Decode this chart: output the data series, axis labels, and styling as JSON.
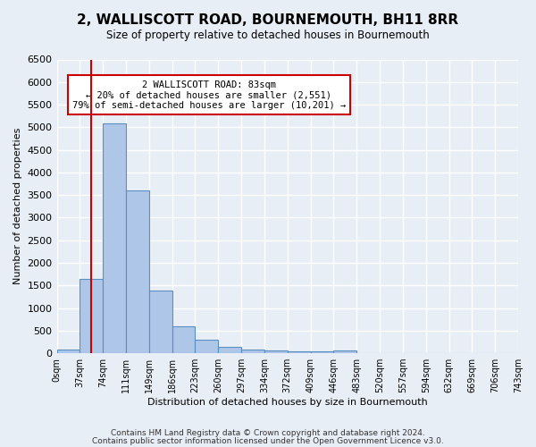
{
  "title": "2, WALLISCOTT ROAD, BOURNEMOUTH, BH11 8RR",
  "subtitle": "Size of property relative to detached houses in Bournemouth",
  "xlabel": "Distribution of detached houses by size in Bournemouth",
  "ylabel": "Number of detached properties",
  "bin_labels": [
    "0sqm",
    "37sqm",
    "74sqm",
    "111sqm",
    "149sqm",
    "186sqm",
    "223sqm",
    "260sqm",
    "297sqm",
    "334sqm",
    "372sqm",
    "409sqm",
    "446sqm",
    "483sqm",
    "520sqm",
    "557sqm",
    "594sqm",
    "632sqm",
    "669sqm",
    "706sqm",
    "743sqm"
  ],
  "bar_values": [
    75,
    1650,
    5080,
    3600,
    1390,
    600,
    290,
    140,
    80,
    55,
    45,
    40,
    60,
    0,
    0,
    0,
    0,
    0,
    0,
    0
  ],
  "bar_color": "#aec6e8",
  "bar_edge_color": "#5a8fc2",
  "red_line_x": 1.5,
  "red_line_color": "#cc0000",
  "annotation_text": "2 WALLISCOTT ROAD: 83sqm\n← 20% of detached houses are smaller (2,551)\n79% of semi-detached houses are larger (10,201) →",
  "annotation_box_color": "#ffffff",
  "annotation_box_edge_color": "#cc0000",
  "ylim": [
    0,
    6500
  ],
  "yticks": [
    0,
    500,
    1000,
    1500,
    2000,
    2500,
    3000,
    3500,
    4000,
    4500,
    5000,
    5500,
    6000,
    6500
  ],
  "footer1": "Contains HM Land Registry data © Crown copyright and database right 2024.",
  "footer2": "Contains public sector information licensed under the Open Government Licence v3.0.",
  "background_color": "#e8eef5",
  "grid_color": "#ffffff"
}
